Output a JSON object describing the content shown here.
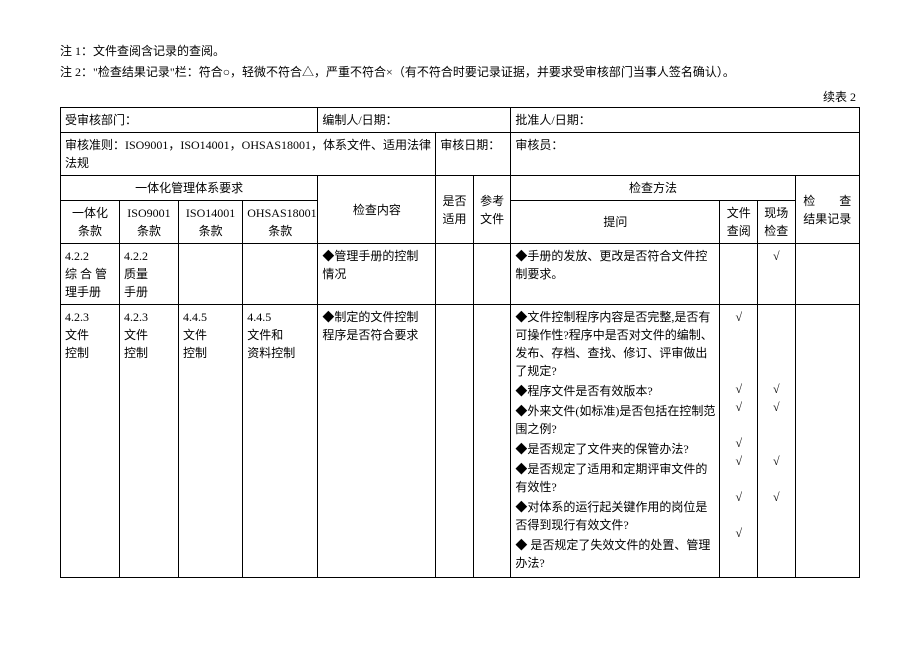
{
  "notes": {
    "n1": "注 1：文件查阅含记录的查阅。",
    "n2": "注 2：\"检查结果记录\"栏：符合○，轻微不符合△，严重不符合×（有不符合时要记录证据，并要求受审核部门当事人签名确认）。"
  },
  "cont_label": "续表 2",
  "header_row1": {
    "dept_label": "受审核部门：",
    "dept_value": "",
    "editor_label": "编制人/日期：",
    "editor_value": "",
    "approver_label": "批准人/日期：",
    "approver_value": ""
  },
  "header_row2": {
    "criteria_label": "审核准则：ISO9001，ISO14001，OHSAS18001，体系文件、适用法律法规",
    "date_label": "审核日期：",
    "date_value": "",
    "auditor_label": "审核员：",
    "auditor_value": ""
  },
  "col_headers": {
    "group_req": "一体化管理体系要求",
    "integrated": "一体化\n条款",
    "iso9001": "ISO9001\n条款",
    "iso14001": "ISO14001\n条款",
    "ohsas": "OHSAS18001\n条款",
    "content": "检查内容",
    "applicable": "是否\n适用",
    "refdoc": "参考\n文件",
    "method_group": "检查方法",
    "question": "提问",
    "doc_review": "文件\n查阅",
    "site_review": "现场\n检查",
    "result": "检　　查\n结果记录"
  },
  "rows": [
    {
      "c1": "4.2.2\n综 合 管\n理手册",
      "c2": "4.2.2\n质量\n手册",
      "c3": "",
      "c4": "",
      "content": "◆管理手册的控制\n情况",
      "applicable": "",
      "refdoc": "",
      "questions": [
        "◆手册的发放、更改是否符合文件控制要求。"
      ],
      "doc_marks": [
        ""
      ],
      "site_marks": [
        "√"
      ],
      "result": ""
    },
    {
      "c1": "4.2.3\n文件\n控制",
      "c2": "4.2.3\n文件\n控制",
      "c3": "4.4.5\n文件\n控制",
      "c4": "4.4.5\n文件和\n资料控制",
      "content": "◆制定的文件控制\n程序是否符合要求",
      "applicable": "",
      "refdoc": "",
      "questions": [
        "◆文件控制程序内容是否完整,是否有可操作性?程序中是否对文件的编制、发布、存档、查找、修订、评审做出了规定?",
        "◆程序文件是否有效版本?",
        "◆外来文件(如标准)是否包括在控制范围之例?",
        "◆是否规定了文件夹的保管办法?",
        "◆是否规定了适用和定期评审文件的有效性?",
        "◆对体系的运行起关键作用的岗位是否得到现行有效文件?",
        "◆ 是否规定了失效文件的处置、管理办法?"
      ],
      "doc_marks": [
        "√",
        "√",
        "√",
        "√",
        "√",
        "√",
        "√"
      ],
      "site_marks": [
        "",
        "√",
        "√",
        "",
        "√",
        "√",
        ""
      ],
      "result": ""
    }
  ],
  "checkmark": "√"
}
